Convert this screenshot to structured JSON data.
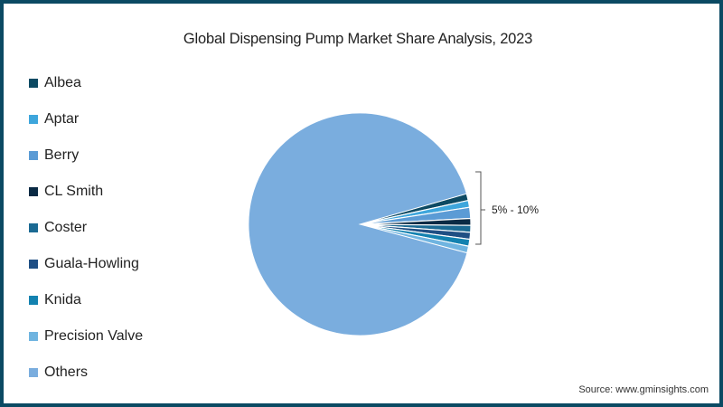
{
  "chart_data": {
    "type": "pie",
    "title": "Global Dispensing Pump Market Share Analysis, 2023",
    "categories": [
      "Albea",
      "Aptar",
      "Berry",
      "CL Smith",
      "Coster",
      "Guala-Howling",
      "Knida",
      "Precision Valve",
      "Others"
    ],
    "values": [
      1.0,
      1.0,
      1.6,
      1.0,
      1.0,
      1.0,
      1.0,
      1.0,
      91.4
    ],
    "colors": [
      "#0d4a63",
      "#3ea6dc",
      "#5b9bd5",
      "#0a2a44",
      "#1b6a93",
      "#1f4f84",
      "#1382b0",
      "#6fb4e0",
      "#7aadde"
    ],
    "annotation": "5% - 10%",
    "legend_position": "left",
    "source": "Source: www.gminsights.com"
  },
  "title": "Global Dispensing Pump Market Share Analysis, 2023",
  "legend": [
    {
      "label": "Albea",
      "color": "#0d4a63"
    },
    {
      "label": "Aptar",
      "color": "#3ea6dc"
    },
    {
      "label": "Berry",
      "color": "#5b9bd5"
    },
    {
      "label": "CL Smith",
      "color": "#0a2a44"
    },
    {
      "label": "Coster",
      "color": "#1b6a93"
    },
    {
      "label": "Guala-Howling",
      "color": "#1f4f84"
    },
    {
      "label": "Knida",
      "color": "#1382b0"
    },
    {
      "label": "Precision Valve",
      "color": "#6fb4e0"
    },
    {
      "label": "Others",
      "color": "#7aadde"
    }
  ],
  "annotation": "5% - 10%",
  "source": "Source: www.gminsights.com"
}
